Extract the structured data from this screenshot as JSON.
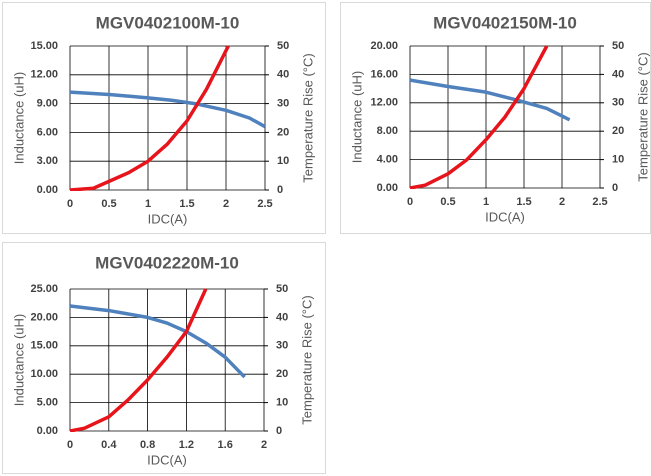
{
  "chart_data": [
    {
      "type": "line",
      "title": "MGV0402100M-10",
      "x_label": "IDC(A)",
      "y_label": "Inductance (uH)",
      "y2_label": "Temperature Rise (°C)",
      "xlim": [
        0,
        2.5
      ],
      "xticks": [
        0,
        0.5,
        1,
        1.5,
        2,
        2.5
      ],
      "ylim": [
        0,
        15
      ],
      "yticks": [
        {
          "value": 0,
          "label": "0.00"
        },
        {
          "value": 3,
          "label": "3.00"
        },
        {
          "value": 6,
          "label": "6.00"
        },
        {
          "value": 9,
          "label": "9.00"
        },
        {
          "value": 12,
          "label": "12.00"
        },
        {
          "value": 15,
          "label": "15.00"
        }
      ],
      "y2lim": [
        0,
        50
      ],
      "y2ticks": [
        0,
        10,
        20,
        30,
        40,
        50
      ],
      "grid": true,
      "series": [
        {
          "color": "#4f81bd",
          "x": [
            0,
            0.5,
            1,
            1.3,
            1.6,
            2,
            2.3,
            2.5
          ],
          "values": [
            10.2,
            9.95,
            9.6,
            9.35,
            9.0,
            8.3,
            7.5,
            6.6
          ]
        },
        {
          "color": "#e8141b",
          "axis": "y2",
          "x": [
            0,
            0.3,
            0.5,
            0.75,
            1,
            1.25,
            1.5,
            1.75,
            2.03
          ],
          "values": [
            0,
            0.6,
            3,
            6,
            10,
            16,
            24,
            35,
            50
          ]
        }
      ]
    },
    {
      "type": "line",
      "title": "MGV0402150M-10",
      "x_label": "IDC(A)",
      "y_label": "Inductance (uH)",
      "y2_label": "Temperature Rise (°C)",
      "xlim": [
        0,
        2.5
      ],
      "xticks": [
        0,
        0.5,
        1,
        1.5,
        2,
        2.5
      ],
      "ylim": [
        0,
        20
      ],
      "yticks": [
        {
          "value": 0,
          "label": "0.00"
        },
        {
          "value": 4,
          "label": "4.00"
        },
        {
          "value": 8,
          "label": "8.00"
        },
        {
          "value": 12,
          "label": "12.00"
        },
        {
          "value": 16,
          "label": "16.00"
        },
        {
          "value": 20,
          "label": "20.00"
        }
      ],
      "y2lim": [
        0,
        50
      ],
      "y2ticks": [
        0,
        10,
        20,
        30,
        40,
        50
      ],
      "grid": true,
      "series": [
        {
          "color": "#4f81bd",
          "x": [
            0,
            0.5,
            1,
            1.4,
            1.8,
            2.1
          ],
          "values": [
            15.2,
            14.3,
            13.5,
            12.4,
            11.2,
            9.6
          ]
        },
        {
          "color": "#e8141b",
          "axis": "y2",
          "x": [
            0,
            0.2,
            0.5,
            0.75,
            1,
            1.25,
            1.5,
            1.8
          ],
          "values": [
            0,
            1,
            5,
            10,
            17,
            25,
            35,
            50
          ]
        }
      ]
    },
    {
      "type": "line",
      "title": "MGV0402220M-10",
      "x_label": "IDC(A)",
      "y_label": "Inductance (uH)",
      "y2_label": "Temperature Rise (°C)",
      "xlim": [
        0,
        2
      ],
      "xticks": [
        0,
        0.4,
        0.8,
        1.2,
        1.6,
        2
      ],
      "ylim": [
        0,
        25
      ],
      "yticks": [
        {
          "value": 0,
          "label": "0.00"
        },
        {
          "value": 5,
          "label": "5.00"
        },
        {
          "value": 10,
          "label": "10.00"
        },
        {
          "value": 15,
          "label": "15.00"
        },
        {
          "value": 20,
          "label": "20.00"
        },
        {
          "value": 25,
          "label": "25.00"
        }
      ],
      "y2lim": [
        0,
        50
      ],
      "y2ticks": [
        0,
        10,
        20,
        30,
        40,
        50
      ],
      "grid": true,
      "series": [
        {
          "color": "#4f81bd",
          "x": [
            0,
            0.4,
            0.8,
            1.0,
            1.2,
            1.4,
            1.6,
            1.8
          ],
          "values": [
            22,
            21.2,
            20,
            19,
            17.5,
            15.5,
            13,
            9.5
          ]
        },
        {
          "color": "#e8141b",
          "axis": "y2",
          "x": [
            0,
            0.15,
            0.4,
            0.6,
            0.8,
            1.0,
            1.2,
            1.4
          ],
          "values": [
            0,
            1,
            5,
            11,
            18,
            26,
            35,
            50
          ]
        }
      ]
    }
  ]
}
